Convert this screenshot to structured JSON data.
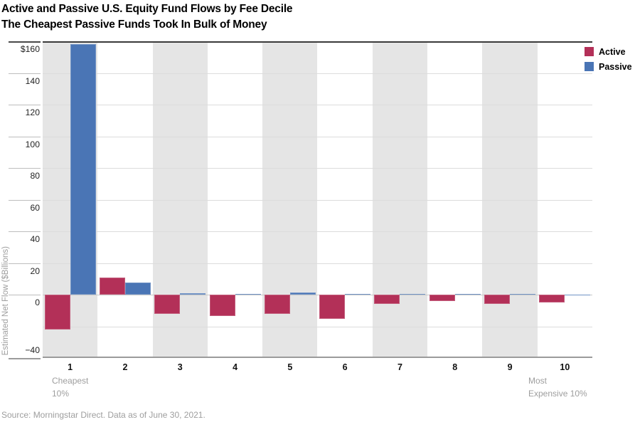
{
  "chart_data": {
    "type": "bar",
    "title": "Active and Passive U.S. Equity Fund Flows by Fee Decile",
    "subtitle": "The Cheapest Passive Funds Took In Bulk of Money",
    "categories": [
      "1",
      "2",
      "3",
      "4",
      "5",
      "6",
      "7",
      "8",
      "9",
      "10"
    ],
    "series": [
      {
        "name": "Active",
        "color": "#b33058",
        "values": [
          -22,
          11,
          -12,
          -13.5,
          -12,
          -15.5,
          -6,
          -4,
          -6,
          -5
        ]
      },
      {
        "name": "Passive",
        "color": "#4a75b5",
        "values": [
          158,
          7.5,
          1,
          0.4,
          1.2,
          0.2,
          0.3,
          0.3,
          0.5,
          -0.6
        ]
      }
    ],
    "xlabel": "",
    "ylabel": "Estimated Net Flow ($Billions)",
    "ylim": [
      -40,
      160
    ],
    "gridline_step": 20,
    "grid": true,
    "legend_position": "top-right",
    "yticks": [
      {
        "label": "$160",
        "value": 160
      },
      {
        "label": "140",
        "value": 140
      },
      {
        "label": "120",
        "value": 120
      },
      {
        "label": "100",
        "value": 100
      },
      {
        "label": "80",
        "value": 80
      },
      {
        "label": "60",
        "value": 60
      },
      {
        "label": "40",
        "value": 40
      },
      {
        "label": "20",
        "value": 20
      },
      {
        "label": "0",
        "value": 0
      },
      {
        "label": "−40",
        "value": -40
      }
    ],
    "x_annotations": {
      "cheapest": [
        "Cheapest",
        "10%"
      ],
      "most_expensive": [
        "Most",
        "Expensive 10%"
      ]
    },
    "background_stripes": "odd deciles shaded",
    "stripe_color": "#e5e5e5"
  },
  "source": "Source: Morningstar Direct. Data as of June 30, 2021."
}
